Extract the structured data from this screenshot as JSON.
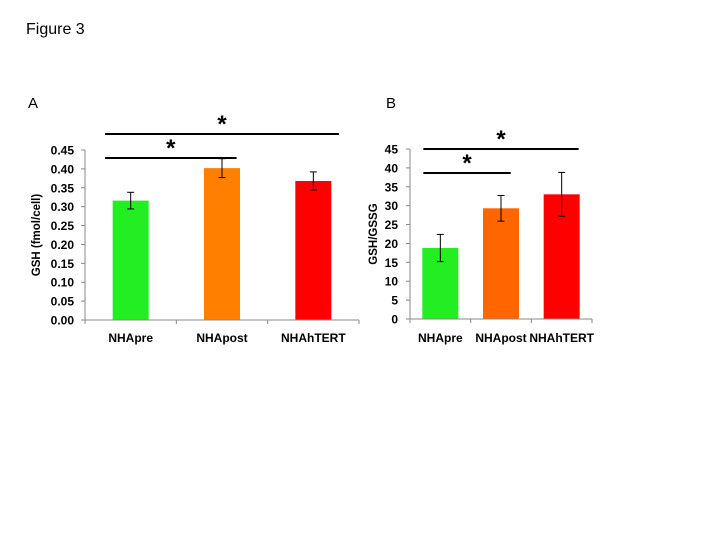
{
  "figure_title": "Figure 3",
  "chart_data": [
    {
      "panel": "A",
      "type": "bar",
      "categories": [
        "NHApre",
        "NHApost",
        "NHAhTERT"
      ],
      "values": [
        0.316,
        0.402,
        0.368
      ],
      "errors": [
        0.022,
        0.025,
        0.024
      ],
      "colors": [
        "#22ee22",
        "#ff8000",
        "#ff0000"
      ],
      "ylabel": "GSH (fmol/cell)",
      "xlabel": "",
      "ylim": [
        0,
        0.45
      ],
      "yticks": [
        "0.00",
        "0.05",
        "0.10",
        "0.15",
        "0.20",
        "0.25",
        "0.30",
        "0.35",
        "0.40",
        "0.45"
      ],
      "significance": [
        {
          "from": "NHApre",
          "to": "NHApost",
          "label": "*"
        },
        {
          "from": "NHApre",
          "to": "NHAhTERT",
          "label": "*"
        }
      ]
    },
    {
      "panel": "B",
      "type": "bar",
      "categories": [
        "NHApre",
        "NHApost",
        "NHAhTERT"
      ],
      "values": [
        18.8,
        29.3,
        33.0
      ],
      "errors": [
        3.6,
        3.4,
        5.8
      ],
      "colors": [
        "#22ee22",
        "#ff6600",
        "#ff0000"
      ],
      "ylabel": "GSH/GSSG",
      "xlabel": "",
      "ylim": [
        0,
        45
      ],
      "yticks": [
        "0",
        "5",
        "10",
        "15",
        "20",
        "25",
        "30",
        "35",
        "40",
        "45"
      ],
      "significance": [
        {
          "from": "NHApre",
          "to": "NHApost",
          "label": "*"
        },
        {
          "from": "NHApre",
          "to": "NHAhTERT",
          "label": "*"
        }
      ]
    }
  ]
}
